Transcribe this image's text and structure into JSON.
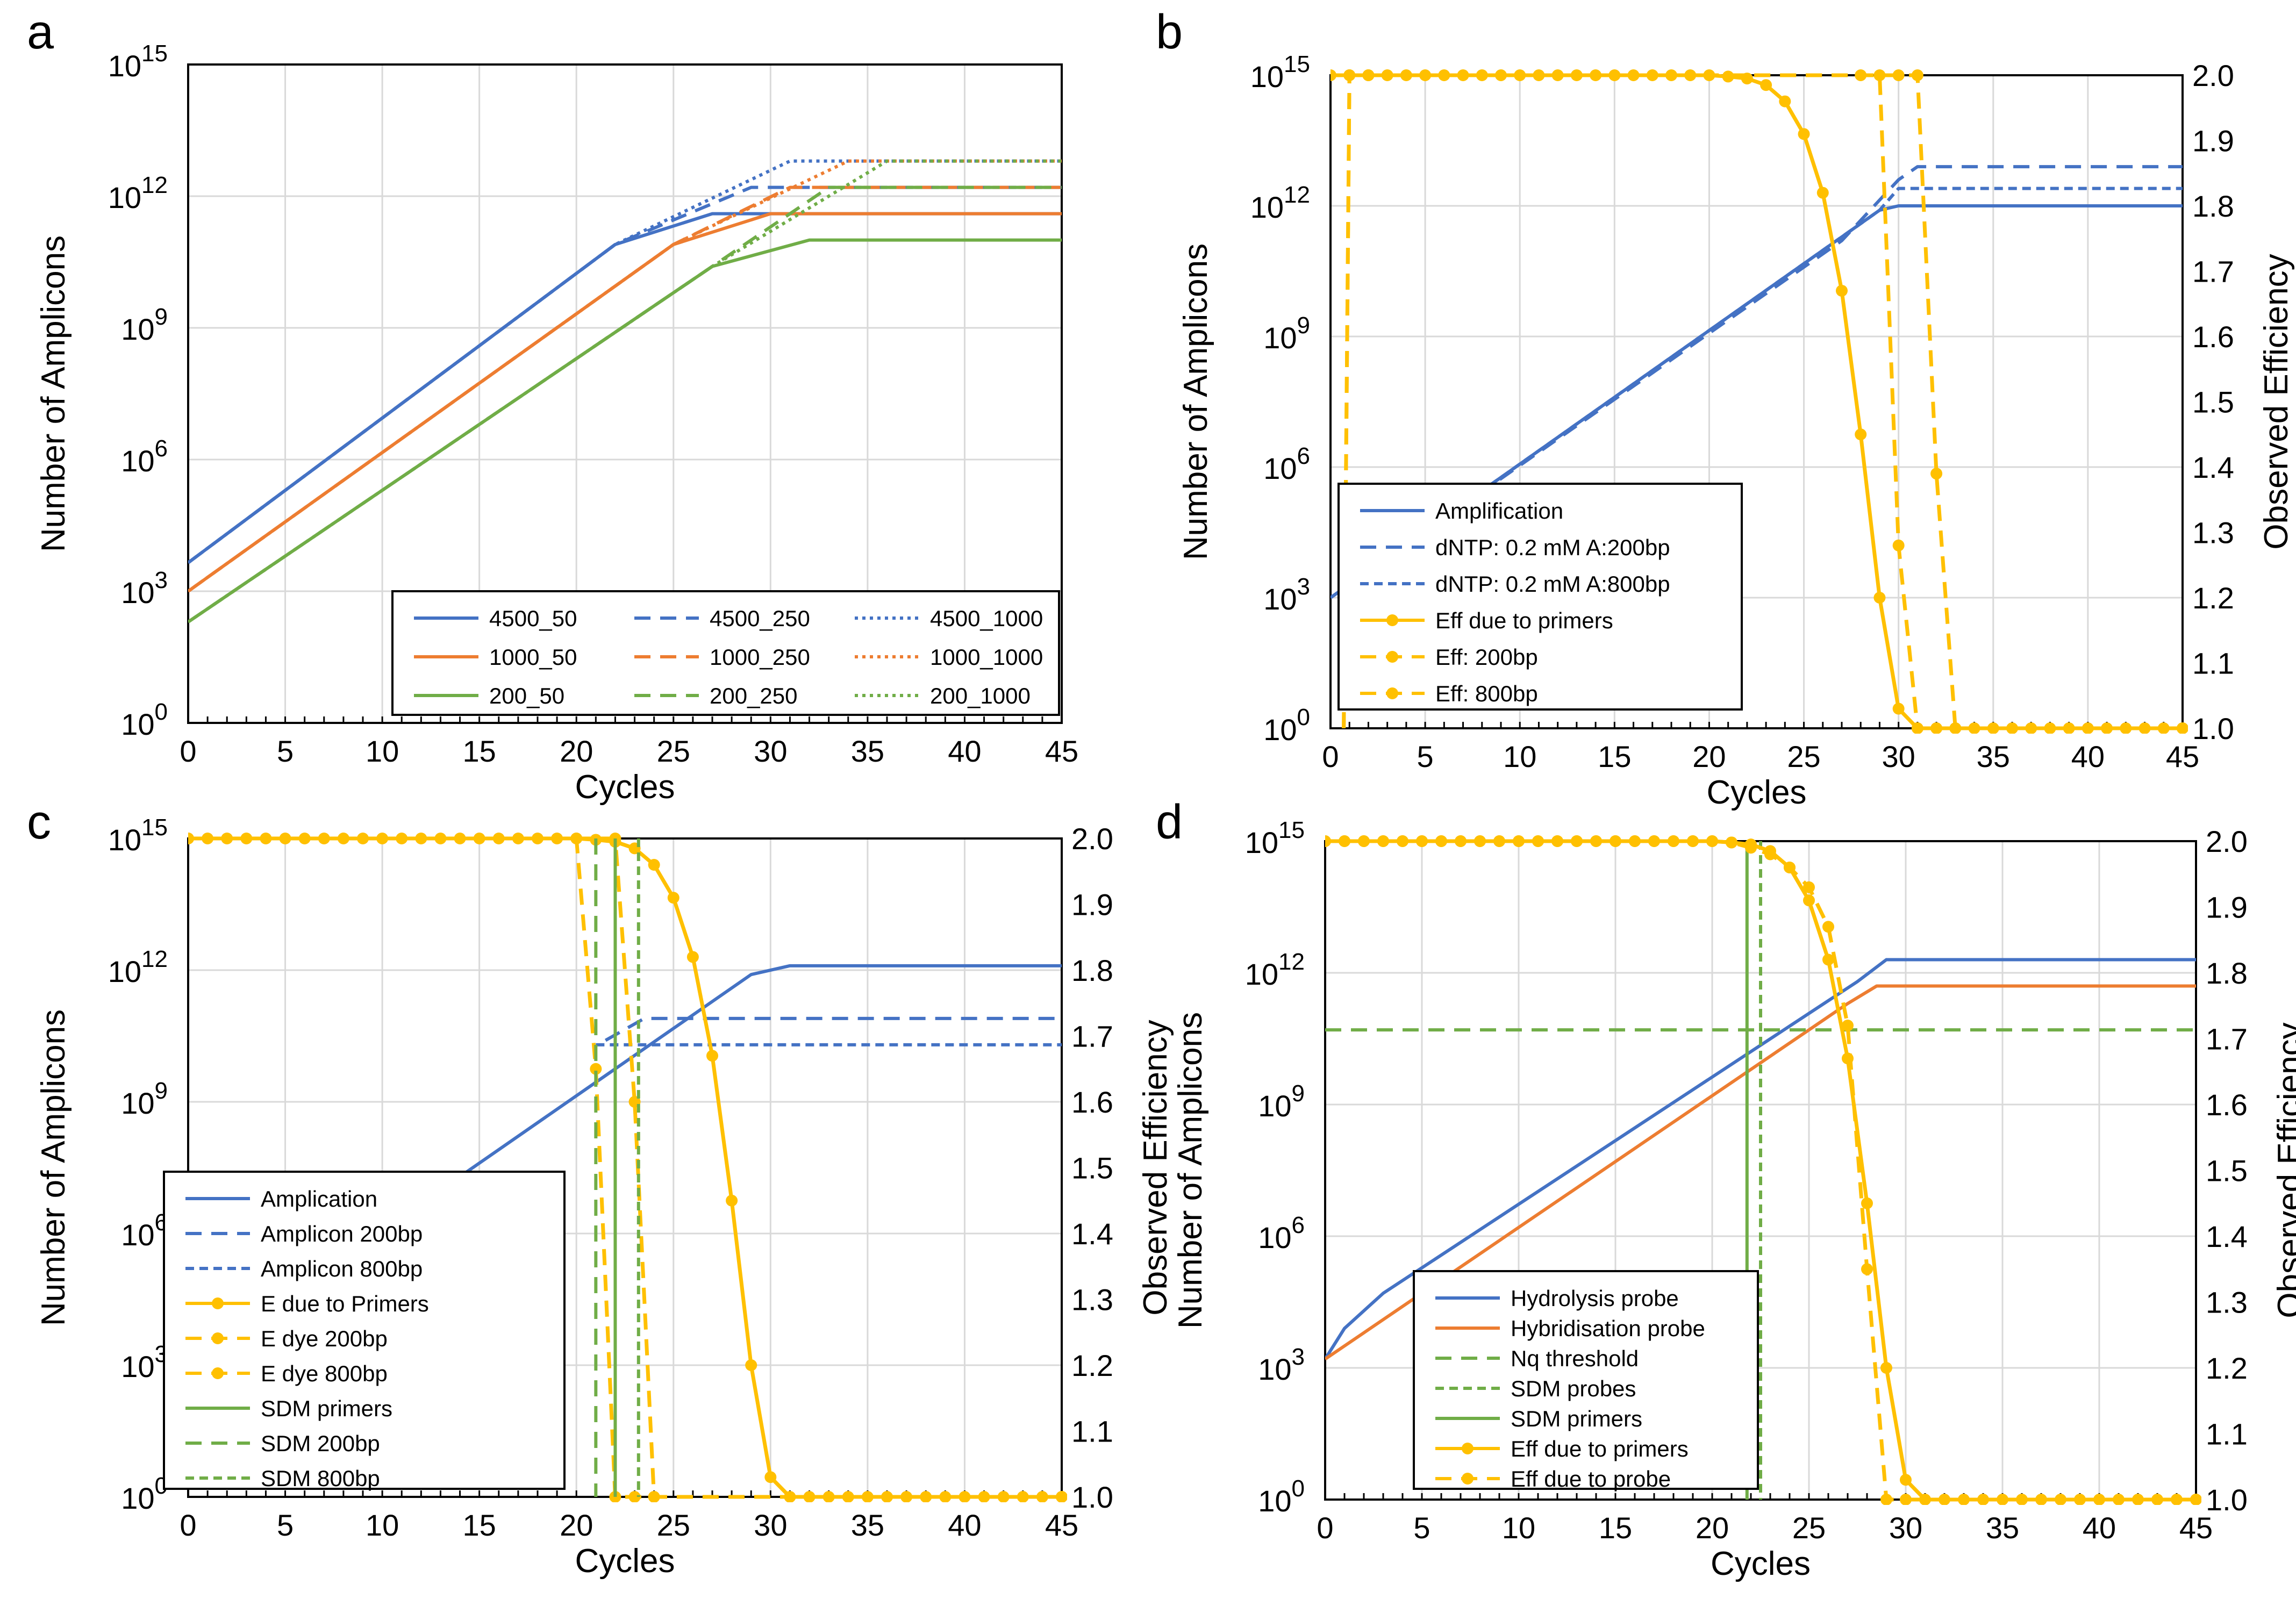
{
  "colors": {
    "blue": "#4472C4",
    "orange": "#ED7D31",
    "green": "#70AD47",
    "gold": "#FFC000",
    "grid": "#D9D9D9"
  },
  "chart_data": [
    {
      "panel": "a",
      "type": "line",
      "xlabel": "Cycles",
      "ylabel": "Number of Amplicons",
      "xlim": [
        0,
        45
      ],
      "xticks": [
        "0",
        "5",
        "10",
        "15",
        "20",
        "25",
        "30",
        "35",
        "40",
        "45"
      ],
      "ylim_log10": [
        0,
        15
      ],
      "yticks_exp": [
        "0",
        "3",
        "6",
        "9",
        "12",
        "15"
      ],
      "y2": null,
      "series": [
        {
          "name": "4500_50",
          "color": "blue",
          "dash": "solid",
          "axis": "y",
          "x": [
            0,
            22,
            27,
            45
          ],
          "log10y": [
            3.65,
            10.9,
            11.6,
            11.6
          ]
        },
        {
          "name": "4500_250",
          "color": "blue",
          "dash": "dash",
          "axis": "y",
          "x": [
            0,
            22,
            29,
            45
          ],
          "log10y": [
            3.65,
            10.9,
            12.2,
            12.2
          ]
        },
        {
          "name": "4500_1000",
          "color": "blue",
          "dash": "dot",
          "axis": "y",
          "x": [
            0,
            22,
            31,
            45
          ],
          "log10y": [
            3.65,
            10.9,
            12.8,
            12.8
          ]
        },
        {
          "name": "1000_50",
          "color": "orange",
          "dash": "solid",
          "axis": "y",
          "x": [
            0,
            25,
            30,
            45
          ],
          "log10y": [
            3.0,
            10.9,
            11.6,
            11.6
          ]
        },
        {
          "name": "1000_250",
          "color": "orange",
          "dash": "dash",
          "axis": "y",
          "x": [
            0,
            25,
            31,
            45
          ],
          "log10y": [
            3.0,
            10.9,
            12.2,
            12.2
          ]
        },
        {
          "name": "1000_1000",
          "color": "orange",
          "dash": "dot",
          "axis": "y",
          "x": [
            0,
            25,
            34,
            45
          ],
          "log10y": [
            3.0,
            10.9,
            12.8,
            12.8
          ]
        },
        {
          "name": "200_50",
          "color": "green",
          "dash": "solid",
          "axis": "y",
          "x": [
            0,
            27,
            32,
            45
          ],
          "log10y": [
            2.3,
            10.4,
            11.0,
            11.0
          ]
        },
        {
          "name": "200_250",
          "color": "green",
          "dash": "dash",
          "axis": "y",
          "x": [
            0,
            27,
            33,
            45
          ],
          "log10y": [
            2.3,
            10.4,
            12.2,
            12.2
          ]
        },
        {
          "name": "200_1000",
          "color": "green",
          "dash": "dot",
          "axis": "y",
          "x": [
            0,
            27,
            36,
            45
          ],
          "log10y": [
            2.3,
            10.4,
            12.8,
            12.8
          ]
        }
      ],
      "legend_labels": [
        "4500_50",
        "4500_250",
        "4500_1000",
        "1000_50",
        "1000_250",
        "1000_1000",
        "200_50",
        "200_250",
        "200_1000"
      ]
    },
    {
      "panel": "b",
      "type": "line",
      "xlabel": "Cycles",
      "ylabel": "Number of Amplicons",
      "y2label": "Observed Efficiency",
      "xlim": [
        0,
        45
      ],
      "xticks": [
        "0",
        "5",
        "10",
        "15",
        "20",
        "25",
        "30",
        "35",
        "40",
        "45"
      ],
      "ylim_log10": [
        0,
        15
      ],
      "yticks_exp": [
        "0",
        "3",
        "6",
        "9",
        "12",
        "15"
      ],
      "y2": {
        "lim": [
          1.0,
          2.0
        ],
        "ticks": [
          "1.0",
          "1.1",
          "1.2",
          "1.3",
          "1.4",
          "1.5",
          "1.6",
          "1.7",
          "1.8",
          "1.9",
          "2.0"
        ]
      },
      "series": [
        {
          "name": "Amplification",
          "color": "blue",
          "dash": "solid",
          "axis": "y",
          "x": [
            0,
            29,
            30,
            45
          ],
          "log10y": [
            3.0,
            11.9,
            12.0,
            12.0
          ]
        },
        {
          "name": "dNTP: 0.2 mM  A:200bp",
          "color": "blue",
          "dash": "dash",
          "axis": "y",
          "x": [
            0,
            27,
            30,
            31,
            45
          ],
          "log10y": [
            3.0,
            11.2,
            12.6,
            12.9,
            12.9
          ]
        },
        {
          "name": "dNTP: 0.2 mM  A:800bp",
          "color": "blue",
          "dash": "dash2",
          "axis": "y",
          "x": [
            0,
            29,
            30,
            45
          ],
          "log10y": [
            3.0,
            11.9,
            12.4,
            12.4
          ]
        },
        {
          "name": "Eff due to primers",
          "color": "gold",
          "dash": "solid",
          "markers": true,
          "axis": "y2",
          "x": [
            0,
            1,
            2,
            3,
            4,
            5,
            6,
            7,
            8,
            9,
            10,
            11,
            12,
            13,
            14,
            15,
            16,
            17,
            18,
            19,
            20,
            21,
            22,
            23,
            24,
            25,
            26,
            27,
            28,
            29,
            30,
            31,
            32,
            33,
            34,
            35,
            36,
            37,
            38,
            39,
            40,
            41,
            42,
            43,
            44,
            45
          ],
          "y2": [
            2.0,
            2.0,
            2.0,
            2.0,
            2.0,
            2.0,
            2.0,
            2.0,
            2.0,
            2.0,
            2.0,
            2.0,
            2.0,
            2.0,
            2.0,
            2.0,
            2.0,
            2.0,
            2.0,
            2.0,
            2.0,
            1.998,
            1.995,
            1.985,
            1.96,
            1.91,
            1.82,
            1.67,
            1.45,
            1.2,
            1.03,
            1.0,
            1.0,
            1.0,
            1.0,
            1.0,
            1.0,
            1.0,
            1.0,
            1.0,
            1.0,
            1.0,
            1.0,
            1.0,
            1.0,
            1.0
          ]
        },
        {
          "name": "Eff: 200bp",
          "color": "gold",
          "dash": "dash",
          "markers": true,
          "axis": "y2",
          "x": [
            0.7,
            1,
            2,
            28,
            29,
            30,
            31,
            32,
            33,
            45
          ],
          "y2": [
            1.0,
            2.0,
            2.0,
            2.0,
            2.0,
            1.28,
            1.0,
            1.0,
            1.0,
            1.0
          ]
        },
        {
          "name": "Eff: 800bp",
          "color": "gold",
          "dash": "dash",
          "markers": true,
          "axis": "y2",
          "x": [
            0.7,
            1,
            2,
            30,
            31,
            32,
            33,
            45
          ],
          "y2": [
            1.0,
            2.0,
            2.0,
            2.0,
            2.0,
            1.39,
            1.0,
            1.0
          ]
        }
      ],
      "legend_labels": [
        "Amplification",
        "dNTP: 0.2 mM  A:200bp",
        "dNTP: 0.2 mM  A:800bp",
        "Eff due to primers",
        "Eff: 200bp",
        "Eff: 800bp"
      ]
    },
    {
      "panel": "c",
      "type": "line",
      "xlabel": "Cycles",
      "ylabel": "Number of Amplicons",
      "y2label": "Observed Efficiency",
      "xlim": [
        0,
        45
      ],
      "xticks": [
        "0",
        "5",
        "10",
        "15",
        "20",
        "25",
        "30",
        "35",
        "40",
        "45"
      ],
      "ylim_log10": [
        0,
        15
      ],
      "yticks_exp": [
        "0",
        "3",
        "6",
        "9",
        "12",
        "15"
      ],
      "y2": {
        "lim": [
          1.0,
          2.0
        ],
        "ticks": [
          "1.0",
          "1.1",
          "1.2",
          "1.3",
          "1.4",
          "1.5",
          "1.6",
          "1.7",
          "1.8",
          "1.9",
          "2.0"
        ]
      },
      "series": [
        {
          "name": "Amplication",
          "color": "blue",
          "dash": "solid",
          "axis": "y",
          "x": [
            0,
            29,
            31,
            45
          ],
          "log10y": [
            3.0,
            11.9,
            12.1,
            12.1
          ]
        },
        {
          "name": "Amplicon 200bp",
          "color": "blue",
          "dash": "dash",
          "axis": "y",
          "x": [
            21.5,
            23.5,
            45
          ],
          "log10y": [
            10.4,
            10.9,
            10.9
          ],
          "flat_from": 23.5
        },
        {
          "name": "Amplicon 800bp",
          "color": "blue",
          "dash": "dash2",
          "axis": "y",
          "x": [
            21,
            45
          ],
          "log10y": [
            10.3,
            10.3
          ]
        },
        {
          "name": "E due to Primers",
          "color": "gold",
          "dash": "solid",
          "markers": true,
          "axis": "y2",
          "x": [
            0,
            1,
            2,
            3,
            4,
            5,
            6,
            7,
            8,
            9,
            10,
            11,
            12,
            13,
            14,
            15,
            16,
            17,
            18,
            19,
            20,
            21,
            22,
            23,
            24,
            25,
            26,
            27,
            28,
            29,
            30,
            31,
            32,
            33,
            34,
            35,
            36,
            37,
            38,
            39,
            40,
            41,
            42,
            43,
            44,
            45
          ],
          "y2": [
            2.0,
            2.0,
            2.0,
            2.0,
            2.0,
            2.0,
            2.0,
            2.0,
            2.0,
            2.0,
            2.0,
            2.0,
            2.0,
            2.0,
            2.0,
            2.0,
            2.0,
            2.0,
            2.0,
            2.0,
            2.0,
            1.998,
            1.995,
            1.985,
            1.96,
            1.91,
            1.82,
            1.67,
            1.45,
            1.2,
            1.03,
            1.0,
            1.0,
            1.0,
            1.0,
            1.0,
            1.0,
            1.0,
            1.0,
            1.0,
            1.0,
            1.0,
            1.0,
            1.0,
            1.0,
            1.0
          ]
        },
        {
          "name": "E dye 200bp",
          "color": "gold",
          "dash": "dash",
          "markers": true,
          "axis": "y2",
          "x": [
            0,
            20,
            21,
            22,
            23,
            24,
            45
          ],
          "y2": [
            2.0,
            2.0,
            1.65,
            1.0,
            1.0,
            1.0,
            1.0
          ]
        },
        {
          "name": "E dye 800bp",
          "color": "gold",
          "dash": "dash",
          "markers": true,
          "axis": "y2",
          "x": [
            0,
            22,
            23,
            24,
            45
          ],
          "y2": [
            2.0,
            2.0,
            1.6,
            1.0,
            1.0
          ]
        },
        {
          "name": "SDM primers",
          "color": "green",
          "dash": "solid",
          "axis": "vline",
          "xv": 22.0
        },
        {
          "name": "SDM 200bp",
          "color": "green",
          "dash": "dash",
          "axis": "vline",
          "xv": 21.0
        },
        {
          "name": "SDM 800bp",
          "color": "green",
          "dash": "dash2",
          "axis": "vline",
          "xv": 23.2
        }
      ],
      "legend_labels": [
        "Amplication",
        "Amplicon 200bp",
        "Amplicon 800bp",
        "E due to Primers",
        "E dye 200bp",
        "E dye 800bp",
        "SDM primers",
        "SDM 200bp",
        "SDM 800bp"
      ]
    },
    {
      "panel": "d",
      "type": "line",
      "xlabel": "Cycles",
      "ylabel": "Number of Amplicons",
      "y2label": "Observed Efficiency",
      "xlim": [
        0,
        45
      ],
      "xticks": [
        "0",
        "5",
        "10",
        "15",
        "20",
        "25",
        "30",
        "35",
        "40",
        "45"
      ],
      "ylim_log10": [
        0,
        15
      ],
      "yticks_exp": [
        "0",
        "3",
        "6",
        "9",
        "12",
        "15"
      ],
      "y2": {
        "lim": [
          1.0,
          2.0
        ],
        "ticks": [
          "1.0",
          "1.1",
          "1.2",
          "1.3",
          "1.4",
          "1.5",
          "1.6",
          "1.7",
          "1.8",
          "1.9",
          "2.0"
        ]
      },
      "series": [
        {
          "name": "Hydrolysis probe",
          "color": "blue",
          "dash": "solid",
          "axis": "y",
          "x": [
            0,
            1,
            3,
            27.5,
            29,
            45
          ],
          "log10y": [
            3.2,
            3.9,
            4.7,
            11.8,
            12.3,
            12.3
          ]
        },
        {
          "name": "Hybridisation probe",
          "color": "orange",
          "dash": "solid",
          "axis": "y",
          "x": [
            0,
            27,
            28.5,
            45
          ],
          "log10y": [
            3.2,
            11.3,
            11.7,
            11.7
          ]
        },
        {
          "name": "Nq threshold",
          "color": "green",
          "dash": "dash",
          "axis": "hline",
          "log10v": 10.7
        },
        {
          "name": "SDM probes",
          "color": "green",
          "dash": "dash2",
          "axis": "vline",
          "xv": 22.5
        },
        {
          "name": "SDM primers",
          "color": "green",
          "dash": "solid",
          "axis": "vline",
          "xv": 21.8
        },
        {
          "name": "Eff due to primers",
          "color": "gold",
          "dash": "solid",
          "markers": true,
          "axis": "y2",
          "x": [
            0,
            1,
            2,
            3,
            4,
            5,
            6,
            7,
            8,
            9,
            10,
            11,
            12,
            13,
            14,
            15,
            16,
            17,
            18,
            19,
            20,
            21,
            22,
            23,
            24,
            25,
            26,
            27,
            28,
            29,
            30,
            31,
            32,
            33,
            34,
            35,
            36,
            37,
            38,
            39,
            40,
            41,
            42,
            43,
            44,
            45
          ],
          "y2": [
            2.0,
            2.0,
            2.0,
            2.0,
            2.0,
            2.0,
            2.0,
            2.0,
            2.0,
            2.0,
            2.0,
            2.0,
            2.0,
            2.0,
            2.0,
            2.0,
            2.0,
            2.0,
            2.0,
            2.0,
            2.0,
            1.998,
            1.995,
            1.985,
            1.96,
            1.91,
            1.82,
            1.67,
            1.45,
            1.2,
            1.03,
            1.0,
            1.0,
            1.0,
            1.0,
            1.0,
            1.0,
            1.0,
            1.0,
            1.0,
            1.0,
            1.0,
            1.0,
            1.0,
            1.0,
            1.0
          ]
        },
        {
          "name": "Eff due to probe",
          "color": "gold",
          "dash": "dash",
          "markers": true,
          "axis": "y2",
          "x": [
            0,
            1,
            2,
            3,
            4,
            5,
            6,
            7,
            8,
            9,
            10,
            11,
            12,
            13,
            14,
            15,
            16,
            17,
            18,
            19,
            20,
            21,
            22,
            23,
            24,
            25,
            26,
            27,
            28,
            29,
            30,
            45
          ],
          "y2": [
            2.0,
            2.0,
            2.0,
            2.0,
            2.0,
            2.0,
            2.0,
            2.0,
            2.0,
            2.0,
            2.0,
            2.0,
            2.0,
            2.0,
            2.0,
            2.0,
            2.0,
            2.0,
            2.0,
            2.0,
            2.0,
            1.998,
            1.99,
            1.98,
            1.96,
            1.93,
            1.87,
            1.72,
            1.35,
            1.0,
            1.0,
            1.0
          ]
        }
      ],
      "legend_labels": [
        "Hydrolysis probe",
        "Hybridisation probe",
        "Nq threshold",
        "SDM probes",
        "SDM primers",
        "Eff due to primers",
        "Eff due to probe"
      ]
    }
  ]
}
